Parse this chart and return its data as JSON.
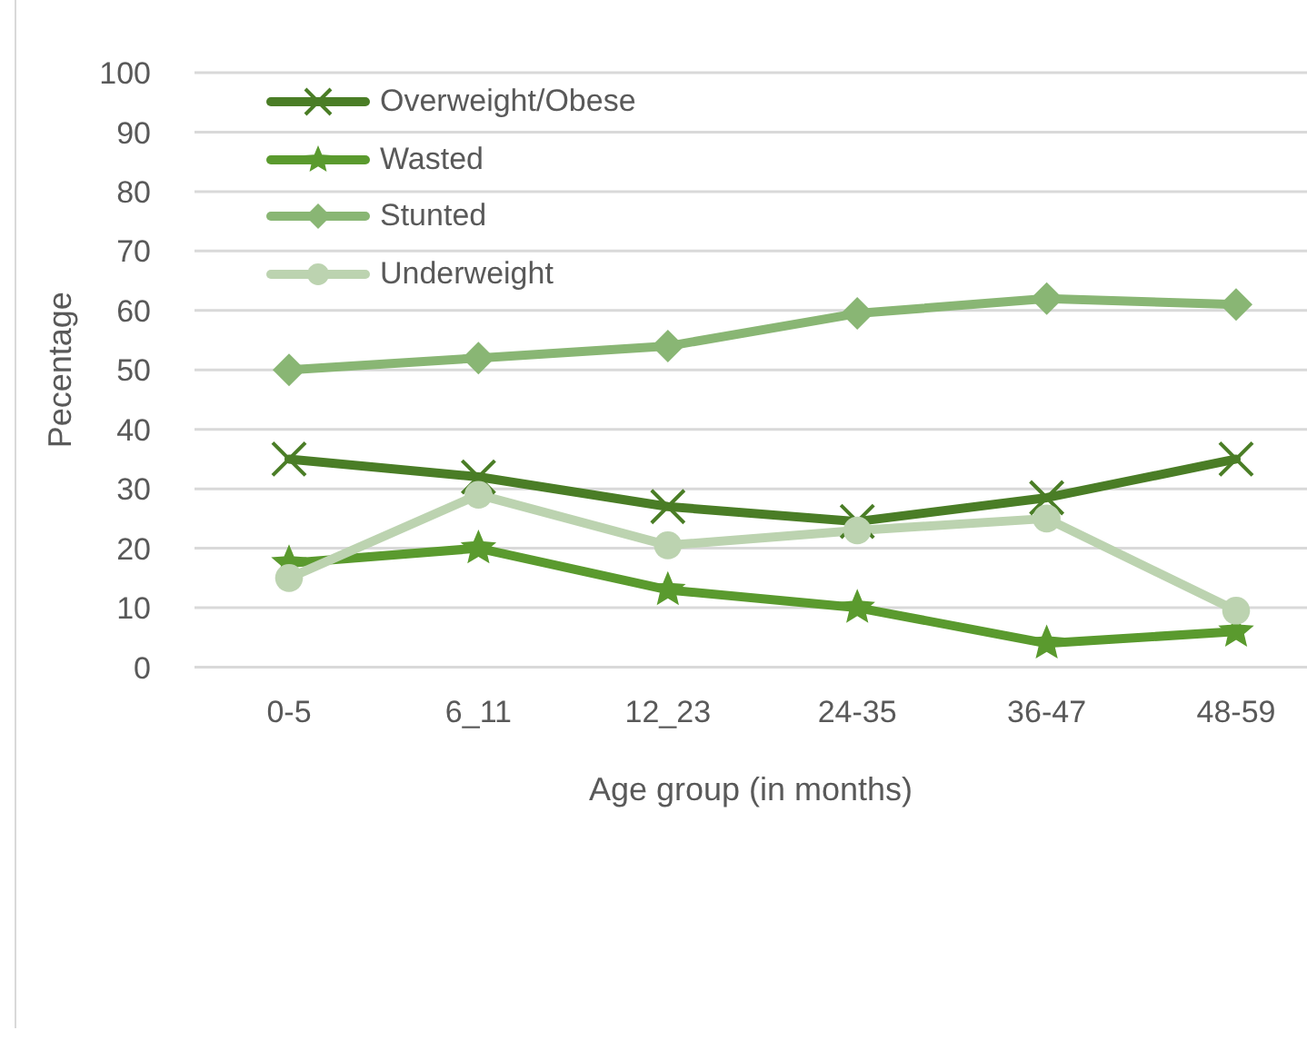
{
  "chart_data": {
    "type": "line",
    "xlabel": "Age group (in months)",
    "ylabel": "Pecentage",
    "categories": [
      "0-5",
      "6_11",
      "12_23",
      "24-35",
      "36-47",
      "48-59"
    ],
    "series": [
      {
        "name": "Overweight/Obese",
        "color": "#4a7d26",
        "marker": "cross",
        "values": [
          35,
          32,
          27,
          24.5,
          28.5,
          35
        ]
      },
      {
        "name": "Wasted",
        "color": "#5a9a2e",
        "marker": "star",
        "values": [
          17.5,
          20,
          13,
          10,
          4,
          6
        ]
      },
      {
        "name": "Stunted",
        "color": "#89b674",
        "marker": "diamond",
        "values": [
          50,
          52,
          54,
          59.5,
          62,
          61
        ]
      },
      {
        "name": "Underweight",
        "color": "#bcd3b0",
        "marker": "circle",
        "values": [
          15,
          29,
          20.5,
          23,
          25,
          9.5
        ]
      }
    ],
    "ylim": [
      0,
      100
    ],
    "yticks": [
      0,
      10,
      20,
      30,
      40,
      50,
      60,
      70,
      80,
      90,
      100
    ],
    "grid": "y",
    "legend": "top left"
  }
}
